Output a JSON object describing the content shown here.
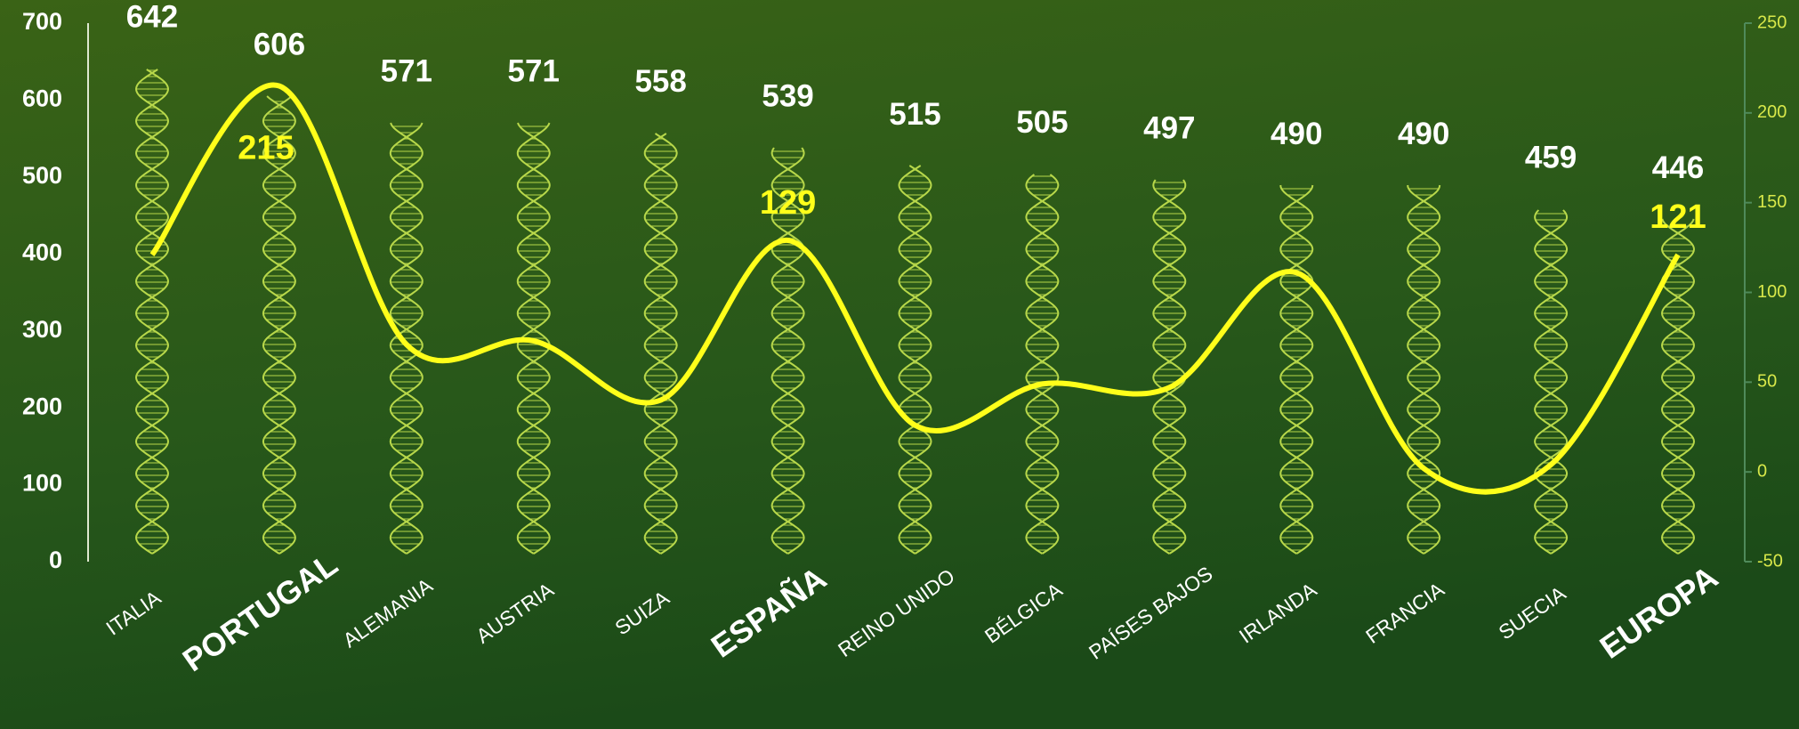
{
  "chart_data": {
    "type": "bar",
    "categories": [
      "ITALIA",
      "PORTUGAL",
      "ALEMANIA",
      "AUSTRIA",
      "SUIZA",
      "ESPAÑA",
      "REINO UNIDO",
      "BÉLGICA",
      "PAÍSES BAJOS",
      "IRLANDA",
      "FRANCIA",
      "SUECIA",
      "EUROPA"
    ],
    "highlight": [
      false,
      true,
      false,
      false,
      false,
      true,
      false,
      false,
      false,
      false,
      false,
      false,
      true
    ],
    "series": [
      {
        "type": "bar",
        "color": "#b8d84a",
        "values": [
          642,
          606,
          571,
          571,
          558,
          539,
          515,
          505,
          497,
          490,
          490,
          459,
          446
        ]
      },
      {
        "type": "line",
        "axis": "y2",
        "color": "#ffff1a",
        "values": [
          121,
          215,
          71,
          73,
          40,
          129,
          26,
          49,
          47,
          111,
          2,
          4,
          121
        ],
        "value_labels": [
          null,
          "215",
          null,
          null,
          null,
          "129",
          null,
          null,
          null,
          null,
          null,
          null,
          "121"
        ]
      }
    ],
    "ylim": [
      0,
      700
    ],
    "yticks": [
      0,
      100,
      200,
      300,
      400,
      500,
      600,
      700
    ],
    "y2lim": [
      -50,
      250
    ],
    "y2ticks": [
      -50,
      0,
      50,
      100,
      150,
      200,
      250
    ]
  }
}
